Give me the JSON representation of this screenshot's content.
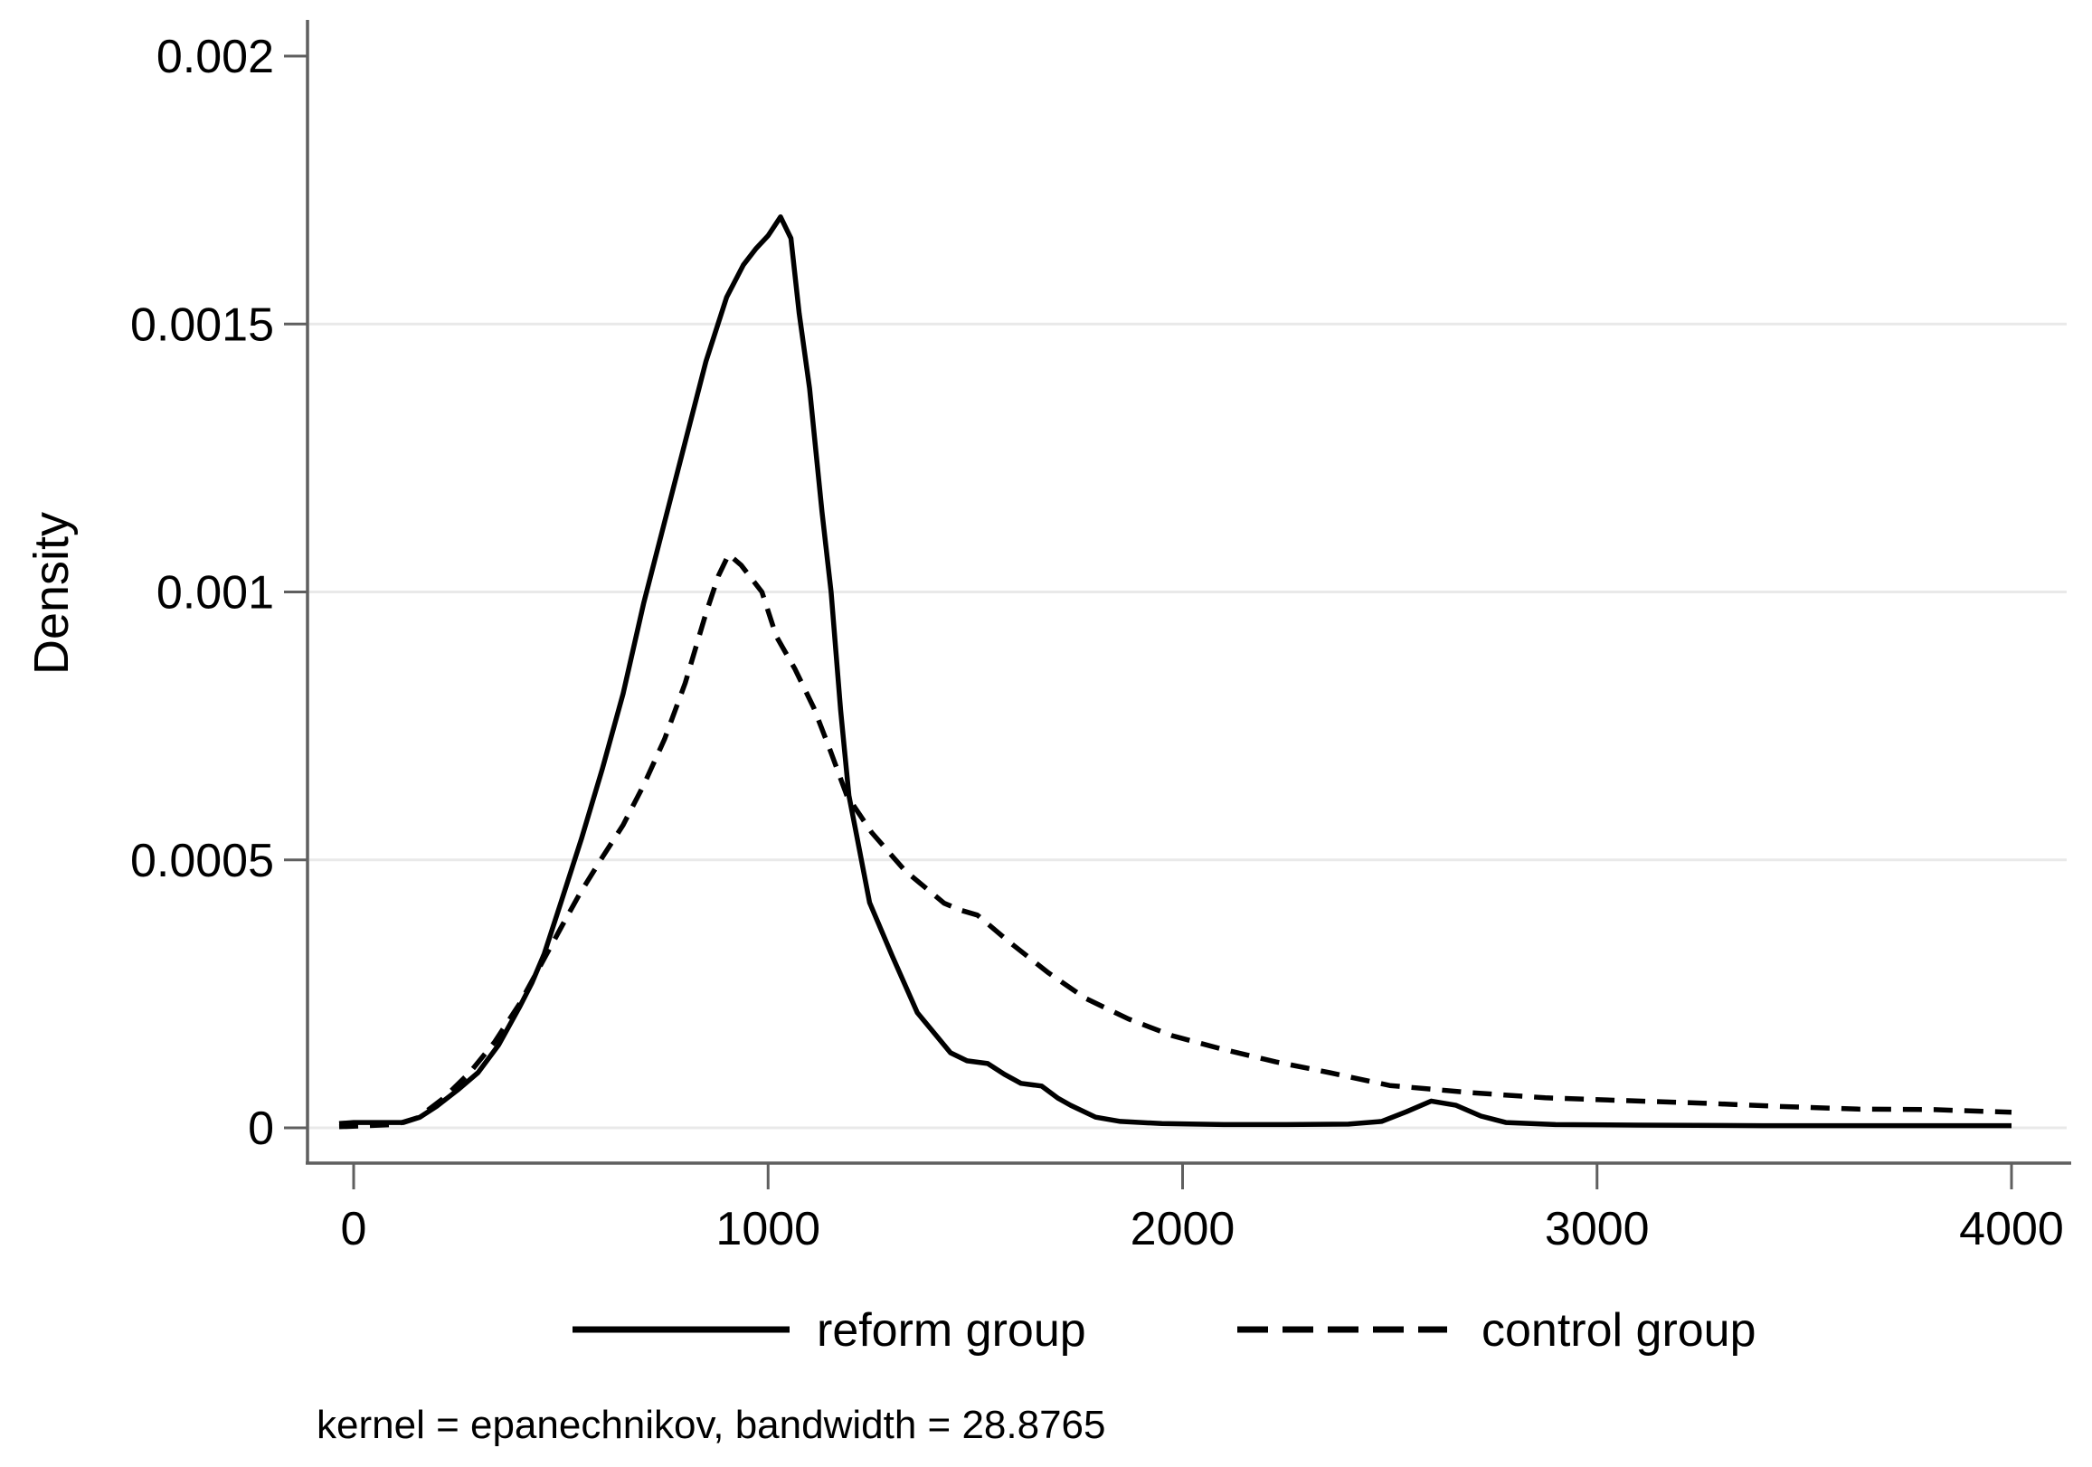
{
  "figure": {
    "background": "#ffffff",
    "ylabel": "Density",
    "note": "kernel = epanechnikov, bandwidth = 28.8765"
  },
  "chart_data": {
    "type": "line",
    "title": "",
    "xlabel": "",
    "ylabel": "Density",
    "xlim": [
      0,
      4000
    ],
    "ylim": [
      0,
      0.002
    ],
    "x_ticks": [
      0,
      1000,
      2000,
      3000,
      4000
    ],
    "x_tick_labels": [
      "0",
      "1000",
      "2000",
      "3000",
      "4000"
    ],
    "y_ticks": [
      0,
      0.0005,
      0.001,
      0.0015,
      0.002
    ],
    "y_tick_labels": [
      "0",
      "0.0005",
      "0.001",
      "0.0015",
      "0.002"
    ],
    "grid": {
      "horizontal": true,
      "gridline_values": [
        0,
        0.0005,
        0.001,
        0.0015
      ]
    },
    "legend_position": "bottom-center",
    "note": "kernel = epanechnikov, bandwidth = 28.8765",
    "kernel": "epanechnikov",
    "bandwidth": "28.8765",
    "series": [
      {
        "name": "reform group",
        "line": "solid",
        "color": "#000000",
        "points": [
          [
            -35,
            8e-06
          ],
          [
            0,
            1e-05
          ],
          [
            60,
            1e-05
          ],
          [
            120,
            1e-05
          ],
          [
            160,
            2e-05
          ],
          [
            200,
            4e-05
          ],
          [
            250,
            7e-05
          ],
          [
            300,
            0.000103
          ],
          [
            350,
            0.000155
          ],
          [
            400,
            0.000225
          ],
          [
            430,
            0.00027
          ],
          [
            460,
            0.000325
          ],
          [
            500,
            0.00042
          ],
          [
            550,
            0.00054
          ],
          [
            600,
            0.00067
          ],
          [
            650,
            0.00081
          ],
          [
            700,
            0.00098
          ],
          [
            750,
            0.00113
          ],
          [
            800,
            0.00128
          ],
          [
            850,
            0.00143
          ],
          [
            900,
            0.00155
          ],
          [
            940,
            0.00161
          ],
          [
            970,
            0.00164
          ],
          [
            1000,
            0.001665
          ],
          [
            1030,
            0.0017
          ],
          [
            1055,
            0.00166
          ],
          [
            1075,
            0.00152
          ],
          [
            1100,
            0.00138
          ],
          [
            1130,
            0.00115
          ],
          [
            1152,
            0.001
          ],
          [
            1175,
            0.00078
          ],
          [
            1195,
            0.00062
          ],
          [
            1215,
            0.00054
          ],
          [
            1245,
            0.00042
          ],
          [
            1300,
            0.00032
          ],
          [
            1360,
            0.000215
          ],
          [
            1440,
            0.00014
          ],
          [
            1480,
            0.000125
          ],
          [
            1530,
            0.00012
          ],
          [
            1570,
            0.0001
          ],
          [
            1610,
            8.3e-05
          ],
          [
            1660,
            7.8e-05
          ],
          [
            1700,
            5.5e-05
          ],
          [
            1730,
            4.2e-05
          ],
          [
            1790,
            2e-05
          ],
          [
            1850,
            1.2e-05
          ],
          [
            1950,
            8e-06
          ],
          [
            2100,
            6e-06
          ],
          [
            2250,
            6e-06
          ],
          [
            2400,
            7e-06
          ],
          [
            2480,
            1.2e-05
          ],
          [
            2540,
            3e-05
          ],
          [
            2600,
            5e-05
          ],
          [
            2660,
            4.2e-05
          ],
          [
            2720,
            2.2e-05
          ],
          [
            2780,
            1e-05
          ],
          [
            2900,
            6e-06
          ],
          [
            3100,
            5e-06
          ],
          [
            3400,
            4e-06
          ],
          [
            3700,
            4e-06
          ],
          [
            4000,
            4e-06
          ]
        ]
      },
      {
        "name": "control group",
        "line": "dashed",
        "color": "#000000",
        "points": [
          [
            -35,
            2e-06
          ],
          [
            100,
            6e-06
          ],
          [
            155,
            1.9e-05
          ],
          [
            215,
            5.4e-05
          ],
          [
            280,
            0.000103
          ],
          [
            340,
            0.00016
          ],
          [
            400,
            0.000231
          ],
          [
            450,
            0.000302
          ],
          [
            500,
            0.000373
          ],
          [
            545,
            0.000436
          ],
          [
            600,
            0.000505
          ],
          [
            650,
            0.000565
          ],
          [
            700,
            0.00064
          ],
          [
            750,
            0.000725
          ],
          [
            800,
            0.00083
          ],
          [
            850,
            0.00096
          ],
          [
            880,
            0.00103
          ],
          [
            905,
            0.00107
          ],
          [
            935,
            0.00105
          ],
          [
            985,
            0.001
          ],
          [
            1020,
            0.000917
          ],
          [
            1065,
            0.000856
          ],
          [
            1110,
            0.000784
          ],
          [
            1150,
            0.000704
          ],
          [
            1190,
            0.00062
          ],
          [
            1250,
            0.000551
          ],
          [
            1330,
            0.00048
          ],
          [
            1425,
            0.000419
          ],
          [
            1465,
            0.000406
          ],
          [
            1505,
            0.000397
          ],
          [
            1580,
            0.000348
          ],
          [
            1675,
            0.00029
          ],
          [
            1765,
            0.000242
          ],
          [
            1870,
            0.000203
          ],
          [
            1975,
            0.000172
          ],
          [
            2095,
            0.000147
          ],
          [
            2225,
            0.000123
          ],
          [
            2355,
            0.000103
          ],
          [
            2500,
            7.9e-05
          ],
          [
            2690,
            6.6e-05
          ],
          [
            2875,
            5.6e-05
          ],
          [
            3065,
            5.1e-05
          ],
          [
            3255,
            4.6e-05
          ],
          [
            3440,
            4e-05
          ],
          [
            3630,
            3.5e-05
          ],
          [
            3815,
            3.4e-05
          ],
          [
            4000,
            2.9e-05
          ]
        ]
      }
    ]
  },
  "colors": {
    "curve": "#000000",
    "axis": "#5f5f5f",
    "gridline": "#e9e9e9",
    "text": "#000000"
  }
}
